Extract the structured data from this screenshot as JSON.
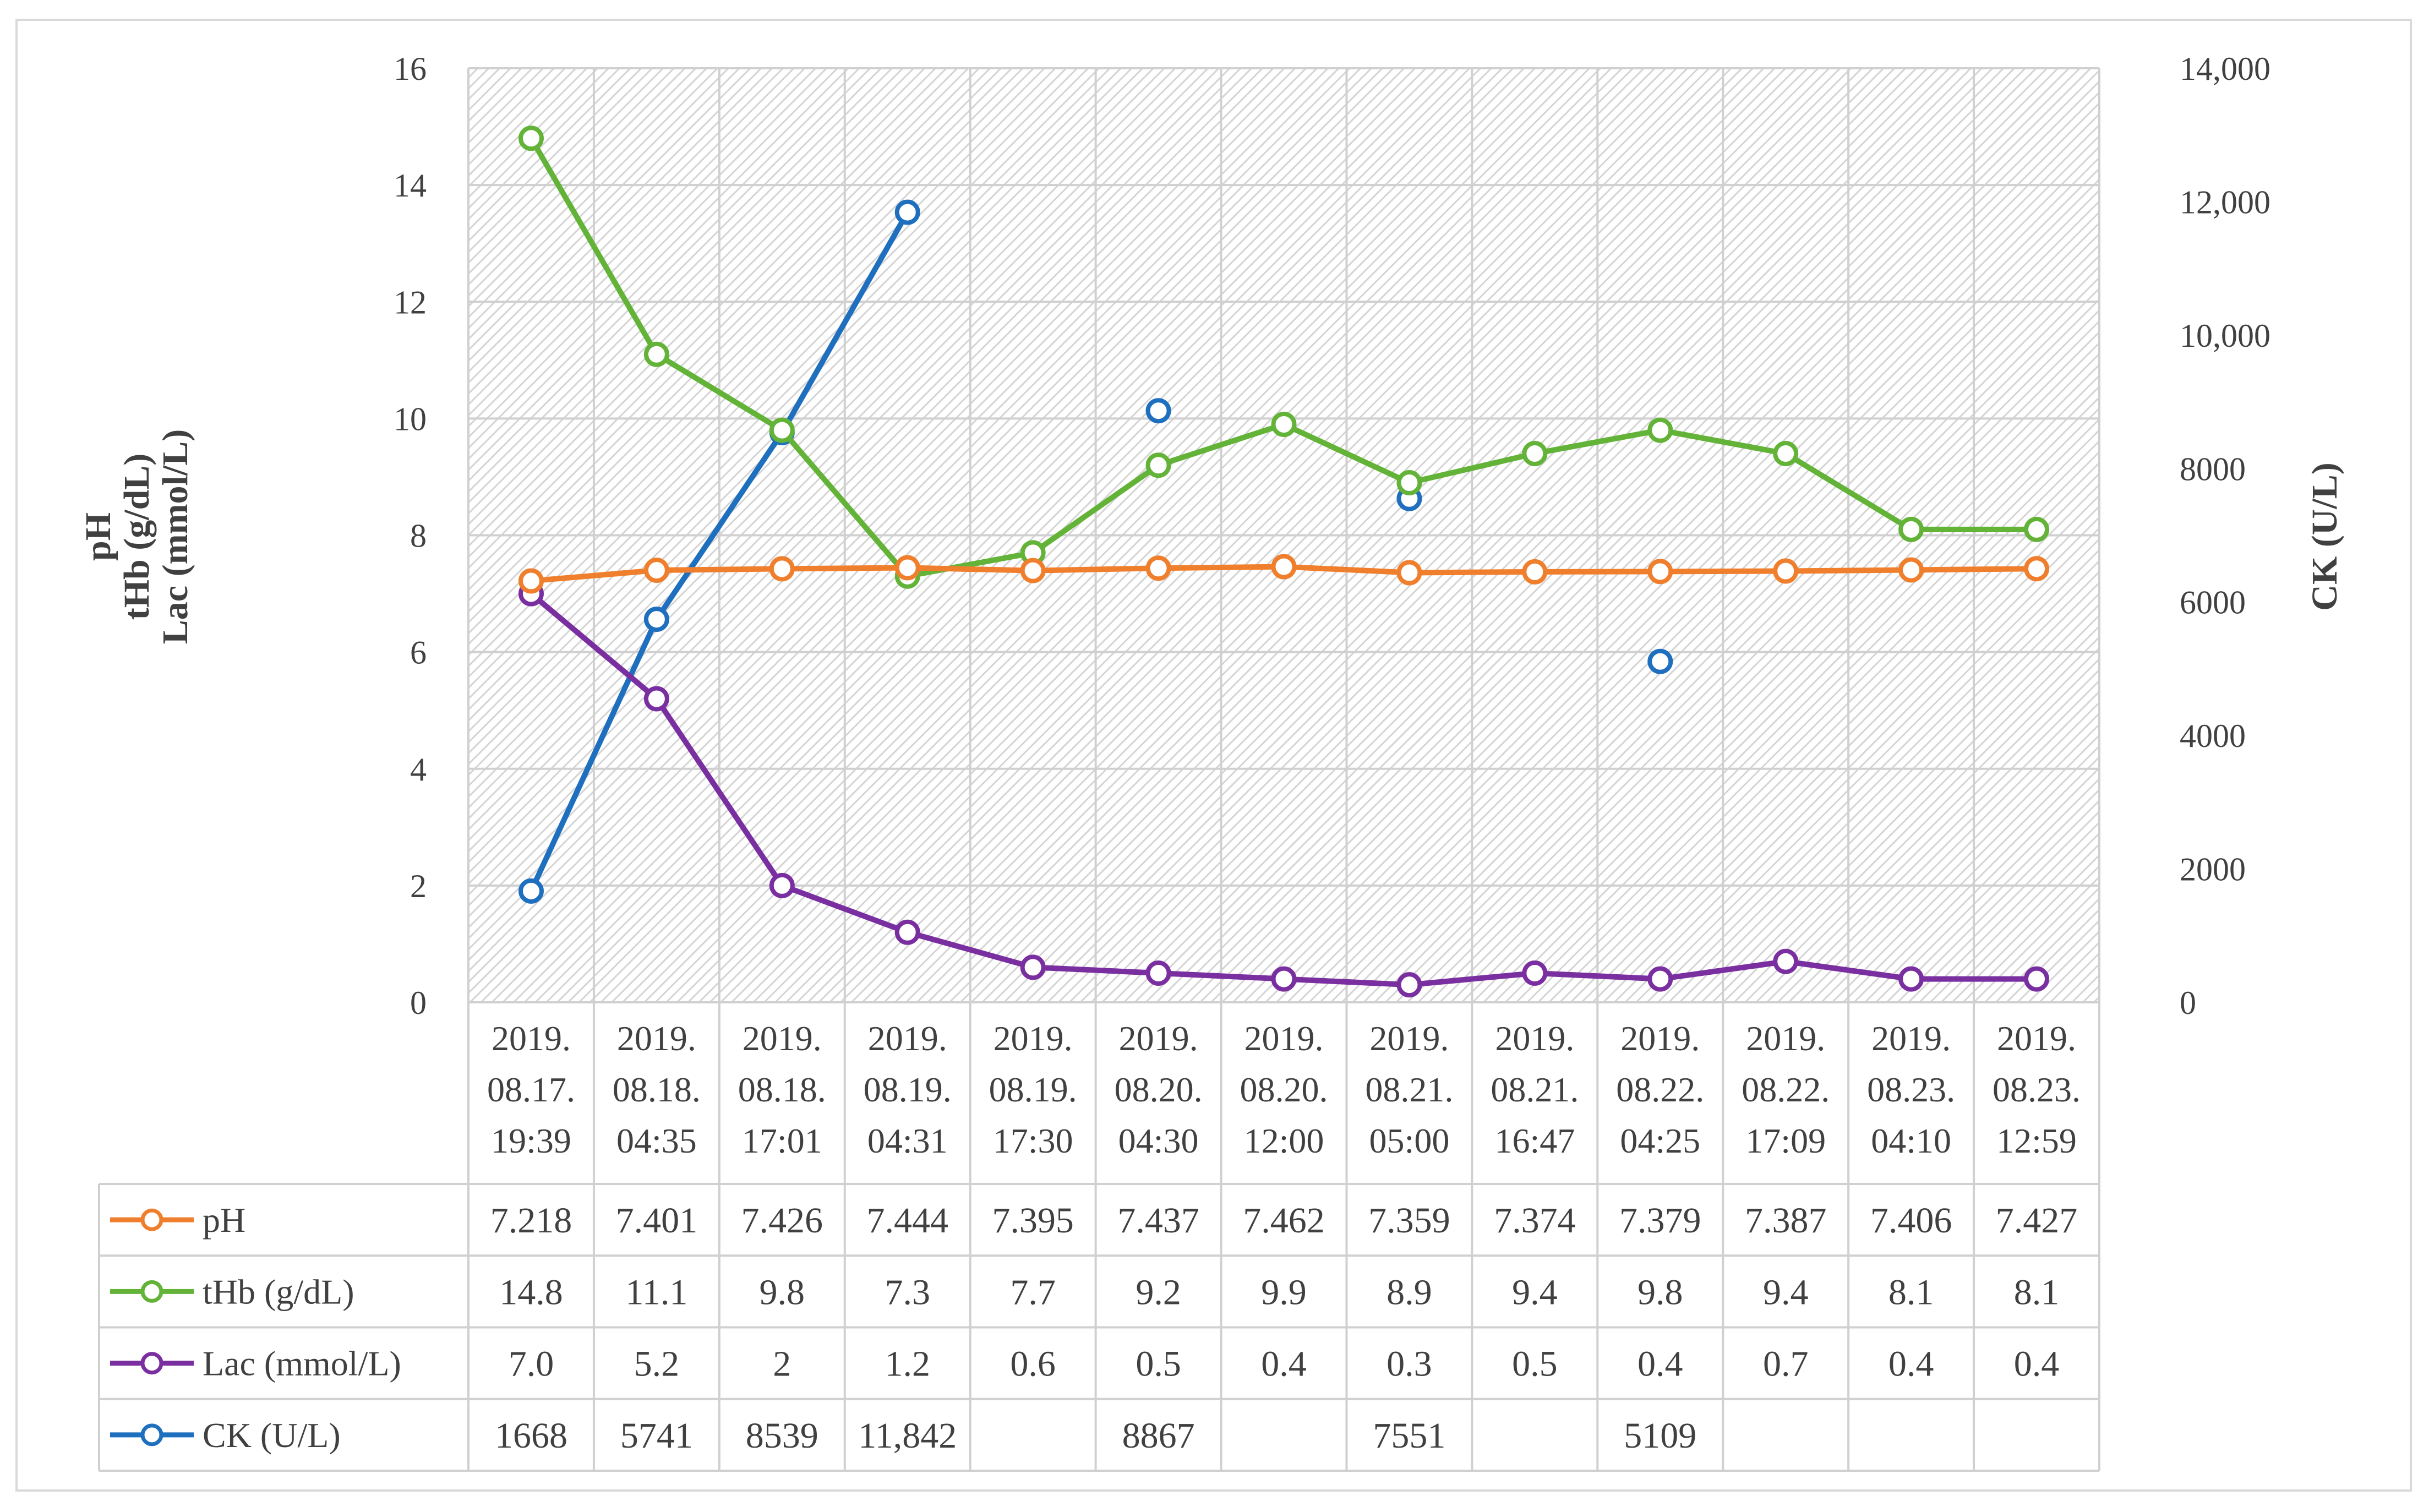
{
  "chart_data": {
    "type": "line",
    "title": "",
    "left_axis": {
      "label_lines": [
        "pH",
        "tHb (g/dL)",
        "Lac (mmol/L)"
      ],
      "ylim": [
        0,
        16
      ],
      "ticks": [
        "0",
        "2",
        "4",
        "6",
        "8",
        "10",
        "12",
        "14",
        "16"
      ]
    },
    "right_axis": {
      "label": "CK (U/L)",
      "ylim": [
        0,
        14000
      ],
      "ticks": [
        "0",
        "2000",
        "4000",
        "6000",
        "8000",
        "10,000",
        "12,000",
        "14,000"
      ]
    },
    "grid": true,
    "legend": "data-table",
    "categories": [
      [
        "2019.",
        "08.17.",
        "19:39"
      ],
      [
        "2019.",
        "08.18.",
        "04:35"
      ],
      [
        "2019.",
        "08.18.",
        "17:01"
      ],
      [
        "2019.",
        "08.19.",
        "04:31"
      ],
      [
        "2019.",
        "08.19.",
        "17:30"
      ],
      [
        "2019.",
        "08.20.",
        "04:30"
      ],
      [
        "2019.",
        "08.20.",
        "12:00"
      ],
      [
        "2019.",
        "08.21.",
        "05:00"
      ],
      [
        "2019.",
        "08.21.",
        "16:47"
      ],
      [
        "2019.",
        "08.22.",
        "04:25"
      ],
      [
        "2019.",
        "08.22.",
        "17:09"
      ],
      [
        "2019.",
        "08.23.",
        "04:10"
      ],
      [
        "2019.",
        "08.23.",
        "12:59"
      ]
    ],
    "series": [
      {
        "name": "pH",
        "axis": "left",
        "color": "#f07f2d",
        "values": [
          7.218,
          7.401,
          7.426,
          7.444,
          7.395,
          7.437,
          7.462,
          7.359,
          7.374,
          7.379,
          7.387,
          7.406,
          7.427
        ],
        "labels": [
          "7.218",
          "7.401",
          "7.426",
          "7.444",
          "7.395",
          "7.437",
          "7.462",
          "7.359",
          "7.374",
          "7.379",
          "7.387",
          "7.406",
          "7.427"
        ]
      },
      {
        "name": "tHb (g/dL)",
        "axis": "left",
        "color": "#62b337",
        "values": [
          14.8,
          11.1,
          9.8,
          7.3,
          7.7,
          9.2,
          9.9,
          8.9,
          9.4,
          9.8,
          9.4,
          8.1,
          8.1
        ],
        "labels": [
          "14.8",
          "11.1",
          "9.8",
          "7.3",
          "7.7",
          "9.2",
          "9.9",
          "8.9",
          "9.4",
          "9.8",
          "9.4",
          "8.1",
          "8.1"
        ]
      },
      {
        "name": "Lac (mmol/L)",
        "axis": "left",
        "color": "#7a2fa0",
        "values": [
          7.0,
          5.2,
          2,
          1.2,
          0.6,
          0.5,
          0.4,
          0.3,
          0.5,
          0.4,
          0.7,
          0.4,
          0.4
        ],
        "labels": [
          "7.0",
          "5.2",
          "2",
          "1.2",
          "0.6",
          "0.5",
          "0.4",
          "0.3",
          "0.5",
          "0.4",
          "0.7",
          "0.4",
          "0.4"
        ]
      },
      {
        "name": "CK (U/L)",
        "axis": "right",
        "color": "#1f6fbf",
        "values": [
          1668,
          5741,
          8539,
          11842,
          null,
          8867,
          null,
          7551,
          null,
          5109,
          null,
          null,
          null
        ],
        "labels": [
          "1668",
          "5741",
          "8539",
          "11,842",
          "",
          "8867",
          "",
          "7551",
          "",
          "5109",
          "",
          "",
          ""
        ]
      }
    ]
  }
}
